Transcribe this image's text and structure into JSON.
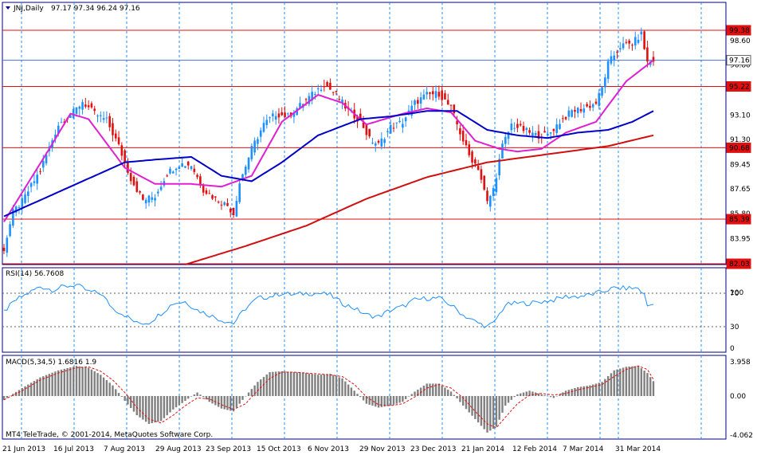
{
  "header": {
    "symbol": "JNJ,Daily",
    "ohlc": "97.17 97.34 96.24 97.16"
  },
  "watermark": "MT4 TeleTrade, © 2001-2014, MetaQuotes Software Corp.",
  "colors": {
    "background": "#ffffff",
    "frame": "#000080",
    "grid": "#1e90ff",
    "bull_candle": "#1e90ff",
    "bear_candle": "#e01010",
    "ma_fast": "#e020d0",
    "ma_mid": "#0000c8",
    "ma_slow": "#d01010",
    "hline": "#e01010",
    "rsi": "#1e90ff",
    "macd_hist": "#808080",
    "macd_signal": "#e01010"
  },
  "chart_data": [
    {
      "type": "candlestick",
      "panel": "price",
      "title": "JNJ,Daily",
      "ylim": [
        82.03,
        101.03
      ],
      "y_ticks": [
        "98.60",
        "96.80",
        "95.22",
        "93.10",
        "91.30",
        "89.45",
        "87.65",
        "85.80",
        "83.95"
      ],
      "x_labels": [
        "21 Jun 2013",
        "16 Jul 2013",
        "7 Aug 2013",
        "29 Aug 2013",
        "23 Sep 2013",
        "15 Oct 2013",
        "6 Nov 2013",
        "29 Nov 2013",
        "23 Dec 2013",
        "21 Jan 2014",
        "12 Feb 2014",
        "7 Mar 2014",
        "31 Mar 2014"
      ],
      "horizontal_levels": [
        {
          "label": "99.38",
          "value": 99.38,
          "style": "red-box"
        },
        {
          "label": "97.16",
          "value": 97.16,
          "style": "current-price"
        },
        {
          "label": "95.22",
          "value": 95.22,
          "style": "red-box"
        },
        {
          "label": "90.68",
          "value": 90.68,
          "style": "red-box"
        },
        {
          "label": "85.39",
          "value": 85.39,
          "style": "red-box"
        },
        {
          "label": "82.03",
          "value": 82.03,
          "style": "red-box"
        }
      ],
      "close_anchors": [
        [
          0,
          83.2
        ],
        [
          3,
          85.9
        ],
        [
          6,
          86.7
        ],
        [
          12,
          89.0
        ],
        [
          18,
          92.4
        ],
        [
          23,
          93.3
        ],
        [
          26,
          94.1
        ],
        [
          30,
          93.2
        ],
        [
          34,
          92.7
        ],
        [
          38,
          90.8
        ],
        [
          42,
          88.4
        ],
        [
          46,
          86.8
        ],
        [
          50,
          87.1
        ],
        [
          54,
          88.8
        ],
        [
          58,
          89.5
        ],
        [
          62,
          89.4
        ],
        [
          66,
          87.6
        ],
        [
          70,
          86.9
        ],
        [
          74,
          86.4
        ],
        [
          76,
          85.8
        ],
        [
          78,
          88.1
        ],
        [
          82,
          90.6
        ],
        [
          86,
          92.4
        ],
        [
          90,
          93.2
        ],
        [
          94,
          93.0
        ],
        [
          98,
          93.8
        ],
        [
          102,
          94.6
        ],
        [
          106,
          95.4
        ],
        [
          110,
          94.6
        ],
        [
          114,
          93.4
        ],
        [
          118,
          92.7
        ],
        [
          121,
          91.3
        ],
        [
          124,
          90.9
        ],
        [
          128,
          92.2
        ],
        [
          132,
          92.6
        ],
        [
          136,
          94.0
        ],
        [
          140,
          94.6
        ],
        [
          144,
          94.7
        ],
        [
          148,
          93.6
        ],
        [
          151,
          91.8
        ],
        [
          154,
          90.1
        ],
        [
          157,
          89.2
        ],
        [
          160,
          86.6
        ],
        [
          162,
          87.6
        ],
        [
          165,
          90.8
        ],
        [
          168,
          92.4
        ],
        [
          172,
          92.0
        ],
        [
          176,
          91.6
        ],
        [
          180,
          91.6
        ],
        [
          184,
          92.6
        ],
        [
          188,
          93.4
        ],
        [
          192,
          93.6
        ],
        [
          196,
          94.0
        ],
        [
          198,
          95.1
        ],
        [
          200,
          96.9
        ],
        [
          204,
          98.2
        ],
        [
          208,
          98.4
        ],
        [
          211,
          99.1
        ],
        [
          213,
          97.0
        ],
        [
          215,
          97.16
        ]
      ],
      "series": [
        {
          "name": "MA fast",
          "values_anchor": [
            [
              0,
              85.2
            ],
            [
              15,
              90.6
            ],
            [
              22,
              93.2
            ],
            [
              28,
              92.8
            ],
            [
              40,
              89.2
            ],
            [
              50,
              88.0
            ],
            [
              62,
              88.0
            ],
            [
              72,
              87.8
            ],
            [
              82,
              88.6
            ],
            [
              92,
              92.6
            ],
            [
              104,
              94.6
            ],
            [
              112,
              94.0
            ],
            [
              120,
              92.4
            ],
            [
              132,
              93.2
            ],
            [
              140,
              93.6
            ],
            [
              148,
              93.3
            ],
            [
              156,
              91.2
            ],
            [
              164,
              90.6
            ],
            [
              170,
              90.4
            ],
            [
              178,
              90.6
            ],
            [
              186,
              91.8
            ],
            [
              196,
              92.6
            ],
            [
              206,
              95.6
            ],
            [
              215,
              97.16
            ]
          ]
        },
        {
          "name": "MA mid",
          "values_anchor": [
            [
              0,
              85.6
            ],
            [
              20,
              87.6
            ],
            [
              40,
              89.6
            ],
            [
              50,
              89.8
            ],
            [
              62,
              90.0
            ],
            [
              72,
              88.6
            ],
            [
              82,
              88.2
            ],
            [
              92,
              89.6
            ],
            [
              104,
              91.6
            ],
            [
              118,
              92.8
            ],
            [
              128,
              93.0
            ],
            [
              140,
              93.4
            ],
            [
              150,
              93.4
            ],
            [
              160,
              92.0
            ],
            [
              170,
              91.6
            ],
            [
              180,
              91.4
            ],
            [
              190,
              91.8
            ],
            [
              200,
              92.0
            ],
            [
              208,
              92.6
            ],
            [
              215,
              93.4
            ]
          ]
        },
        {
          "name": "MA slow",
          "values_anchor": [
            [
              60,
              82.03
            ],
            [
              80,
              83.4
            ],
            [
              100,
              84.9
            ],
            [
              120,
              86.9
            ],
            [
              140,
              88.5
            ],
            [
              160,
              89.6
            ],
            [
              180,
              90.2
            ],
            [
              200,
              90.8
            ],
            [
              215,
              91.6
            ]
          ]
        }
      ]
    },
    {
      "type": "line",
      "panel": "rsi",
      "label": "RSI(14) 56.7608",
      "ylim": [
        0,
        100
      ],
      "y_ticks": [
        "100",
        "70",
        "30",
        "0"
      ],
      "levels": [
        70,
        30
      ],
      "values_anchor": [
        [
          0,
          48
        ],
        [
          4,
          62
        ],
        [
          8,
          70
        ],
        [
          12,
          78
        ],
        [
          16,
          74
        ],
        [
          20,
          78
        ],
        [
          24,
          80
        ],
        [
          28,
          72
        ],
        [
          32,
          70
        ],
        [
          36,
          52
        ],
        [
          40,
          44
        ],
        [
          44,
          34
        ],
        [
          48,
          35
        ],
        [
          52,
          46
        ],
        [
          56,
          58
        ],
        [
          60,
          60
        ],
        [
          64,
          50
        ],
        [
          68,
          44
        ],
        [
          72,
          38
        ],
        [
          76,
          34
        ],
        [
          80,
          52
        ],
        [
          84,
          64
        ],
        [
          88,
          66
        ],
        [
          92,
          70
        ],
        [
          96,
          68
        ],
        [
          100,
          70
        ],
        [
          104,
          70
        ],
        [
          108,
          68
        ],
        [
          112,
          58
        ],
        [
          116,
          52
        ],
        [
          120,
          44
        ],
        [
          124,
          42
        ],
        [
          128,
          50
        ],
        [
          132,
          54
        ],
        [
          136,
          62
        ],
        [
          140,
          64
        ],
        [
          144,
          64
        ],
        [
          148,
          56
        ],
        [
          152,
          44
        ],
        [
          156,
          36
        ],
        [
          160,
          30
        ],
        [
          162,
          34
        ],
        [
          166,
          56
        ],
        [
          170,
          58
        ],
        [
          174,
          58
        ],
        [
          178,
          60
        ],
        [
          182,
          62
        ],
        [
          186,
          66
        ],
        [
          190,
          66
        ],
        [
          194,
          68
        ],
        [
          198,
          72
        ],
        [
          202,
          76
        ],
        [
          206,
          76
        ],
        [
          210,
          76
        ],
        [
          212,
          68
        ],
        [
          213,
          55
        ],
        [
          215,
          56.76
        ]
      ]
    },
    {
      "type": "bar+line",
      "panel": "macd",
      "label": "MACD(5,34,5) 1.6816 1.9",
      "ylim": [
        -4.062,
        3.958
      ],
      "y_ticks": [
        "3.958",
        "0.00",
        "-4.062"
      ],
      "histogram_anchor": [
        [
          0,
          -0.4
        ],
        [
          6,
          0.9
        ],
        [
          12,
          2.1
        ],
        [
          18,
          2.9
        ],
        [
          24,
          3.4
        ],
        [
          28,
          3.2
        ],
        [
          32,
          2.4
        ],
        [
          36,
          1.2
        ],
        [
          40,
          -0.5
        ],
        [
          44,
          -2.0
        ],
        [
          48,
          -2.9
        ],
        [
          52,
          -2.6
        ],
        [
          56,
          -1.4
        ],
        [
          60,
          -0.5
        ],
        [
          64,
          0.4
        ],
        [
          68,
          -0.6
        ],
        [
          72,
          -1.3
        ],
        [
          76,
          -1.6
        ],
        [
          80,
          0.0
        ],
        [
          84,
          1.6
        ],
        [
          88,
          2.7
        ],
        [
          92,
          2.8
        ],
        [
          96,
          2.7
        ],
        [
          100,
          2.6
        ],
        [
          104,
          2.4
        ],
        [
          108,
          2.5
        ],
        [
          112,
          2.0
        ],
        [
          116,
          0.6
        ],
        [
          120,
          -0.8
        ],
        [
          124,
          -1.2
        ],
        [
          128,
          -1.0
        ],
        [
          132,
          -0.6
        ],
        [
          136,
          0.5
        ],
        [
          140,
          1.4
        ],
        [
          144,
          1.4
        ],
        [
          148,
          0.5
        ],
        [
          152,
          -1.0
        ],
        [
          156,
          -2.4
        ],
        [
          160,
          -3.8
        ],
        [
          163,
          -3.2
        ],
        [
          166,
          -1.0
        ],
        [
          170,
          0.2
        ],
        [
          174,
          0.6
        ],
        [
          178,
          0.2
        ],
        [
          182,
          -0.2
        ],
        [
          186,
          0.6
        ],
        [
          190,
          1.0
        ],
        [
          194,
          1.2
        ],
        [
          198,
          1.6
        ],
        [
          202,
          2.9
        ],
        [
          206,
          3.3
        ],
        [
          210,
          3.4
        ],
        [
          213,
          2.6
        ],
        [
          215,
          1.6816
        ]
      ],
      "signal_anchor": [
        [
          0,
          -0.4
        ],
        [
          6,
          0.6
        ],
        [
          12,
          1.8
        ],
        [
          18,
          2.6
        ],
        [
          24,
          3.2
        ],
        [
          28,
          3.3
        ],
        [
          32,
          2.8
        ],
        [
          36,
          1.8
        ],
        [
          40,
          0.4
        ],
        [
          44,
          -1.2
        ],
        [
          48,
          -2.4
        ],
        [
          52,
          -2.8
        ],
        [
          56,
          -2.0
        ],
        [
          60,
          -1.0
        ],
        [
          64,
          -0.2
        ],
        [
          68,
          -0.3
        ],
        [
          72,
          -0.9
        ],
        [
          76,
          -1.4
        ],
        [
          80,
          -0.8
        ],
        [
          84,
          0.6
        ],
        [
          88,
          2.0
        ],
        [
          92,
          2.7
        ],
        [
          96,
          2.7
        ],
        [
          100,
          2.6
        ],
        [
          104,
          2.5
        ],
        [
          108,
          2.4
        ],
        [
          112,
          2.2
        ],
        [
          116,
          1.3
        ],
        [
          120,
          -0.1
        ],
        [
          124,
          -0.9
        ],
        [
          128,
          -1.0
        ],
        [
          132,
          -0.8
        ],
        [
          136,
          -0.1
        ],
        [
          140,
          0.9
        ],
        [
          144,
          1.3
        ],
        [
          148,
          0.9
        ],
        [
          152,
          -0.2
        ],
        [
          156,
          -1.6
        ],
        [
          160,
          -2.9
        ],
        [
          163,
          -3.3
        ],
        [
          166,
          -2.2
        ],
        [
          170,
          -0.8
        ],
        [
          174,
          0.1
        ],
        [
          178,
          0.3
        ],
        [
          182,
          0.1
        ],
        [
          186,
          0.3
        ],
        [
          190,
          0.7
        ],
        [
          194,
          1.0
        ],
        [
          198,
          1.3
        ],
        [
          202,
          2.2
        ],
        [
          206,
          3.0
        ],
        [
          210,
          3.4
        ],
        [
          213,
          3.0
        ],
        [
          215,
          1.9
        ]
      ]
    }
  ]
}
